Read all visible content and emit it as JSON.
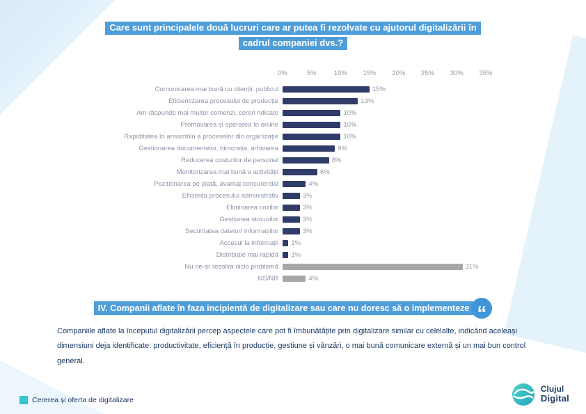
{
  "title": {
    "line1": "Care sunt principalele două lucruri care ar putea fi rezolvate cu ajutorul digitalizării în",
    "line2": "cadrul companiei dvs.?"
  },
  "chart_data": {
    "type": "bar",
    "orientation": "horizontal",
    "title": "",
    "xlabel": "",
    "ylabel": "",
    "categories": [
      "Comunicarea mai bună cu clienții, publicul",
      "Eficientizarea procesului de producție",
      "Am răspunde mai multor comenzi, cereri ridicate",
      "Promovarea și operarea în online",
      "Rapiditatea în ansamblu a proceselor din organizație",
      "Gestionarea documentelor, birocrația, arhivarea",
      "Reducerea costurilor de personal",
      "Monitorizarea mai bună a activității",
      "Poziționarea pe piață, avantaj concurențial",
      "Eficiența procesului administrativ",
      "Eliminarea cozilor",
      "Gestiunea stocurilor",
      "Securitatea datelor/ informațiilor",
      "Accesul la informații",
      "Distribuție mai rapidă",
      "Nu ne-ar rezolva nicio problemă",
      "NS/NR"
    ],
    "values": [
      15,
      13,
      10,
      10,
      10,
      9,
      8,
      6,
      4,
      3,
      3,
      3,
      3,
      1,
      1,
      31,
      4
    ],
    "value_labels": [
      "15%",
      "13%",
      "10%",
      "10%",
      "10%",
      "9%",
      "8%",
      "6%",
      "4%",
      "3%",
      "3%",
      "3%",
      "3%",
      "1%",
      "1%",
      "31%",
      "4%"
    ],
    "axis_ticks": [
      "0%",
      "5%",
      "10%",
      "15%",
      "20%",
      "25%",
      "30%",
      "35%"
    ],
    "xlim": [
      0,
      35
    ],
    "grid": false,
    "legend": null,
    "bar_color": "#2F3B68",
    "muted_color": "#A7A7A7",
    "muted_indices": [
      15,
      16
    ]
  },
  "section": {
    "heading": "IV. Companii aflate în faza incipientă de digitalizare sau care nu doresc să o implementeze",
    "quote_glyph": "“"
  },
  "body": {
    "paragraph": "Companiile aflate la începutul digitalizării percep aspectele care pot fi îmbunătățite prin digitalizare similar cu celelalte, indicând aceleași dimensiuni deja identificate: productivitate, eficiență în producție, gestiune și vânzări, o mai bună comunicare externă și un mai bun control general."
  },
  "footer": {
    "label": "Cererea și oferta de digitalizare"
  },
  "logo": {
    "line1": "Clujul",
    "line2": "Digital"
  },
  "colors": {
    "highlight_blue": "#4F9ED9",
    "quote_circle_blue": "#3E96D8",
    "bar_navy": "#2F3B68",
    "bar_gray": "#A7A7A7",
    "category_text": "#8D94A6",
    "body_navy": "#1C3A66",
    "footer_teal": "#38C5CB"
  }
}
